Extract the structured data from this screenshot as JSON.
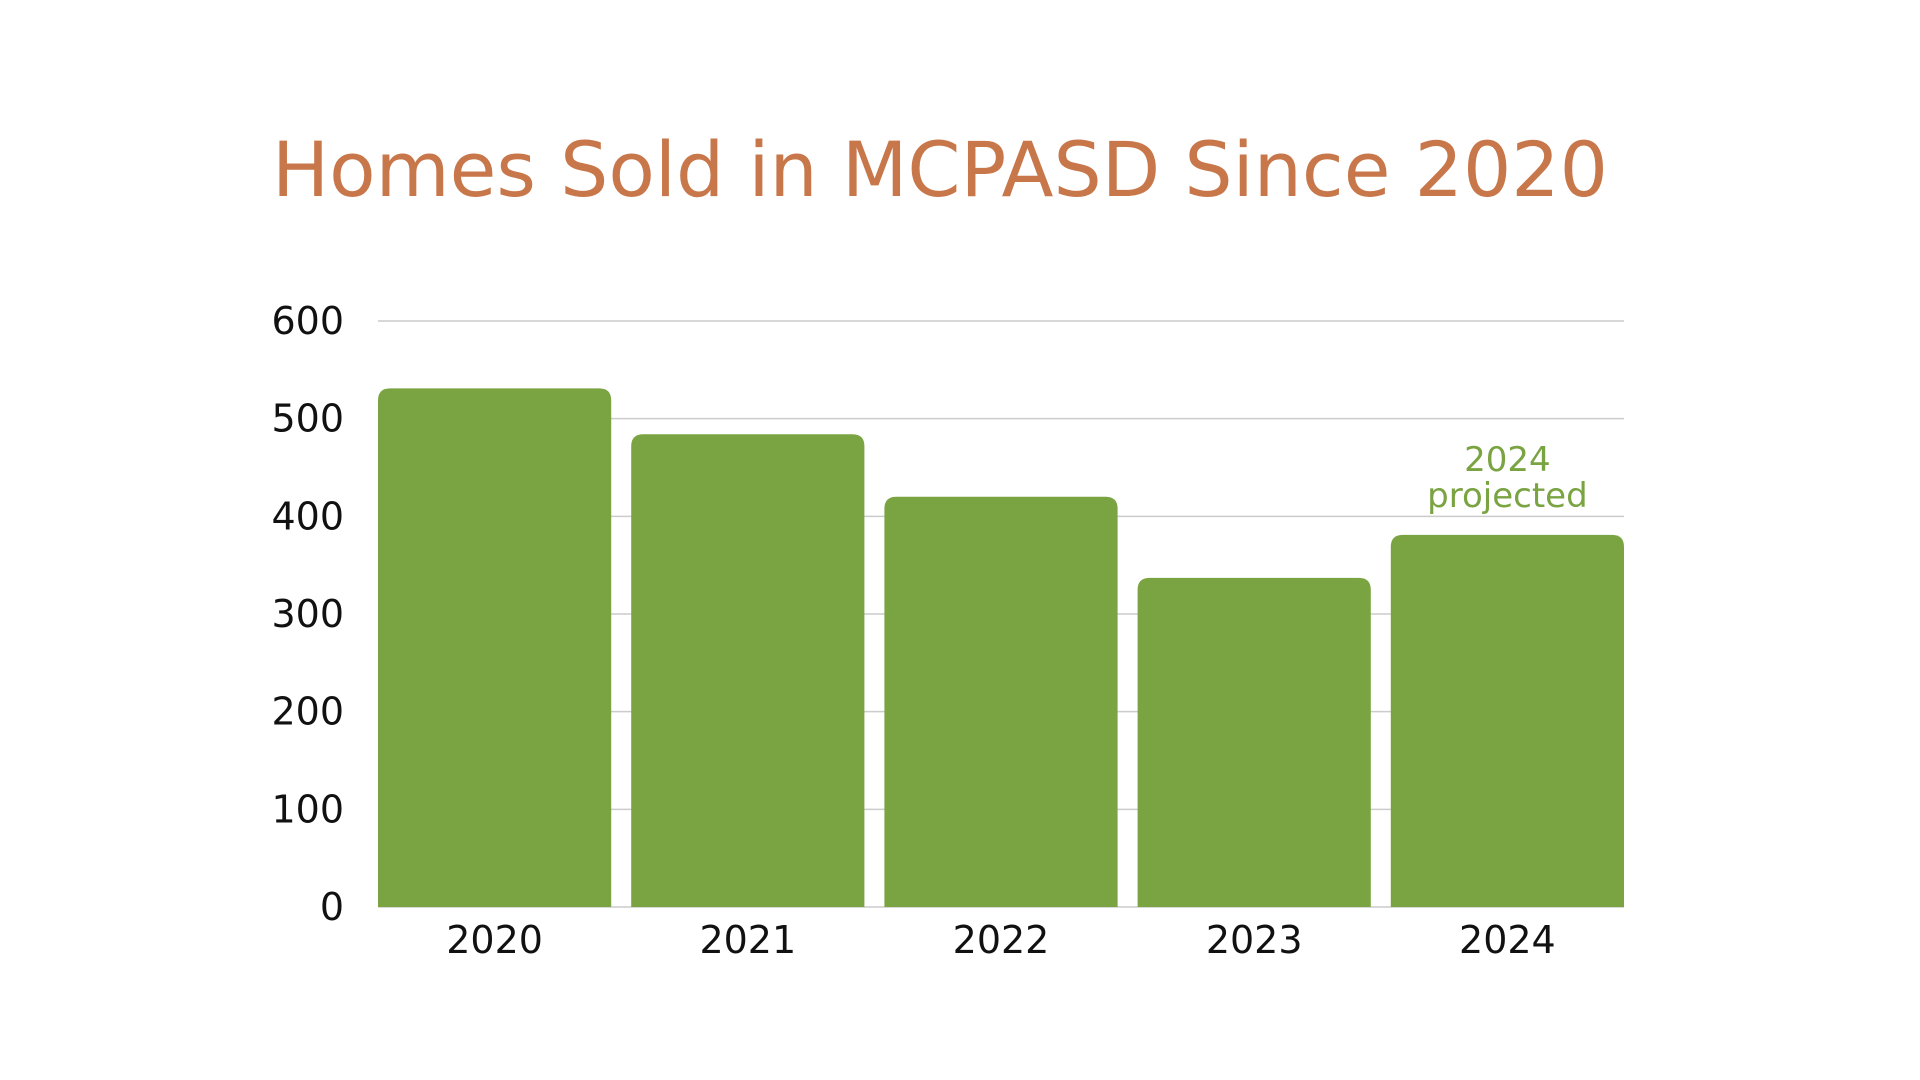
{
  "chart_data": {
    "type": "bar",
    "title": "Homes Sold in MCPASD Since 2020",
    "categories": [
      "2020",
      "2021",
      "2022",
      "2023",
      "2024"
    ],
    "values": [
      531,
      484,
      420,
      337,
      381
    ],
    "xlabel": "",
    "ylabel": "",
    "ylim": [
      0,
      600
    ],
    "yticks": [
      0,
      100,
      200,
      300,
      400,
      500,
      600
    ],
    "grid": true,
    "legend": "none",
    "annotations": [
      {
        "category": "2024",
        "lines": [
          "2024",
          "projected"
        ]
      }
    ]
  },
  "colors": {
    "title": "#C8774A",
    "bar": "#7AA342",
    "annotation": "#7AA342",
    "grid": "#CCCCCC",
    "text": "#111111"
  }
}
